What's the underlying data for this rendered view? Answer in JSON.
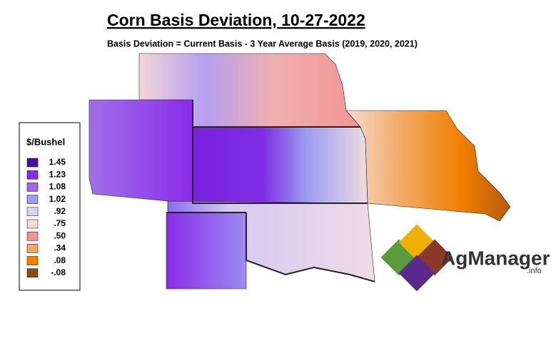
{
  "header": {
    "title": "Corn Basis Deviation, 10-27-2022",
    "subtitle": "Basis Deviation = Current Basis - 3 Year Average Basis (2019, 2020, 2021)"
  },
  "legend": {
    "title": "$/Bushel",
    "items": [
      {
        "label": "1.45",
        "color": "#4a0c9c"
      },
      {
        "label": "1.23",
        "color": "#8a2be8"
      },
      {
        "label": "1.08",
        "color": "#a465ea"
      },
      {
        "label": "1.02",
        "color": "#9c9cf2"
      },
      {
        "label": ".92",
        "color": "#dcd0f2"
      },
      {
        "label": ".75",
        "color": "#f6dccf"
      },
      {
        "label": ".50",
        "color": "#f29494"
      },
      {
        "label": ".34",
        "color": "#f2a862"
      },
      {
        "label": ".08",
        "color": "#f28000"
      },
      {
        "label": "-.08",
        "color": "#8b4a10"
      }
    ]
  },
  "logo": {
    "name": "AgManager",
    "suffix": ".info"
  }
}
